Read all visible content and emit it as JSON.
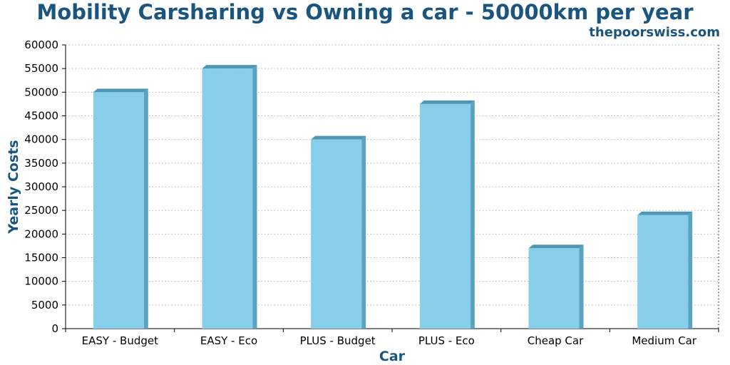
{
  "chart_data": {
    "type": "bar",
    "title": "Mobility Carsharing vs Owning a car - 50000km per year",
    "subtitle": "thepoorswiss.com",
    "xlabel": "Car",
    "ylabel": "Yearly Costs",
    "categories": [
      "EASY - Budget",
      "EASY - Eco",
      "PLUS - Budget",
      "PLUS - Eco",
      "Cheap Car",
      "Medium Car"
    ],
    "values": [
      50000,
      55000,
      40000,
      47500,
      17000,
      24000
    ],
    "ylim": [
      0,
      60000
    ],
    "yticks": [
      0,
      5000,
      10000,
      15000,
      20000,
      25000,
      30000,
      35000,
      40000,
      45000,
      50000,
      55000,
      60000
    ],
    "grid": true,
    "colors": {
      "bar_front": "#87ceeb",
      "bar_side": "#5ba3bf",
      "bar_top": "#4f96b3",
      "title": "#1a5580",
      "grid": "#b0b0b0"
    }
  }
}
